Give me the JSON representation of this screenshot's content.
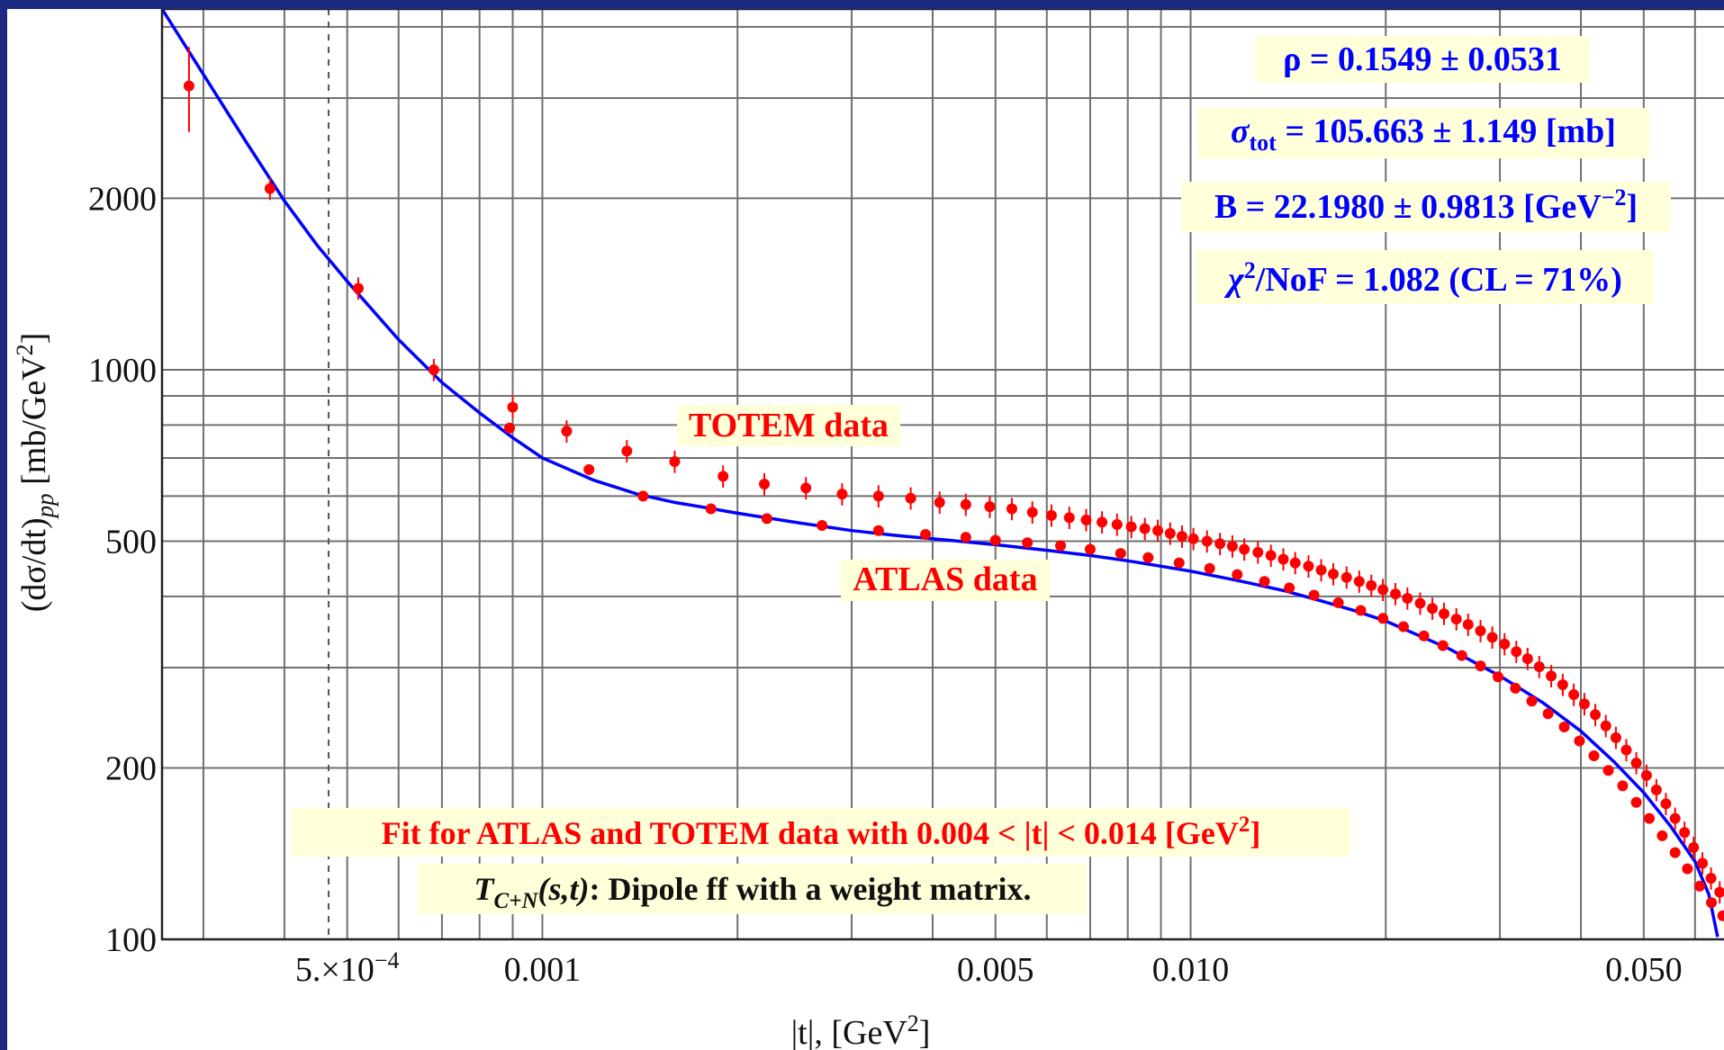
{
  "chart_data": {
    "type": "scatter",
    "xlabel": "|t|, [GeV",
    "xlabel_sup": "2",
    "xlabel_end": "]",
    "ylabel": "(dσ/dt)",
    "ylabel_sub": "pp",
    "ylabel_unit": " [mb/GeV",
    "ylabel_sup": "2",
    "ylabel_end": "]",
    "x_scale": "log",
    "y_scale": "log",
    "xlim": [
      0.000259,
      0.0665
    ],
    "ylim": [
      100,
      4300
    ],
    "grid": true,
    "dashed_vline_x": 0.000468,
    "x_ticks": [
      {
        "value": 0.0005,
        "label": "5.×10",
        "sup": "−4"
      },
      {
        "value": 0.001,
        "label": "0.001"
      },
      {
        "value": 0.005,
        "label": "0.005"
      },
      {
        "value": 0.01,
        "label": "0.010"
      },
      {
        "value": 0.05,
        "label": "0.050"
      }
    ],
    "y_ticks": [
      {
        "value": 100,
        "label": "100"
      },
      {
        "value": 200,
        "label": "200"
      },
      {
        "value": 500,
        "label": "500"
      },
      {
        "value": 1000,
        "label": "1000"
      },
      {
        "value": 2000,
        "label": "2000"
      }
    ],
    "colors": {
      "data": "#ff0000",
      "fit": "#0000ff",
      "grid": "#707070",
      "label_bg": "#ffffd9",
      "frame": "#1b2a80"
    },
    "series": [
      {
        "name": "TOTEM data",
        "kind": "points",
        "x": [
          0.000285,
          0.00038,
          0.00052,
          0.00068,
          0.0009,
          0.00109,
          0.00135,
          0.0016,
          0.0019,
          0.0022,
          0.00255,
          0.0029,
          0.0033,
          0.0037,
          0.0041,
          0.0045,
          0.0049,
          0.0053,
          0.0057,
          0.0061,
          0.0065,
          0.0069,
          0.0073,
          0.0077,
          0.0081,
          0.0085,
          0.0089,
          0.0093,
          0.0097,
          0.0101,
          0.0106,
          0.0111,
          0.0116,
          0.0121,
          0.0127,
          0.0133,
          0.0139,
          0.0145,
          0.0152,
          0.0159,
          0.0166,
          0.0174,
          0.0182,
          0.019,
          0.0198,
          0.0207,
          0.0216,
          0.0226,
          0.0236,
          0.0246,
          0.0257,
          0.0268,
          0.028,
          0.0292,
          0.0305,
          0.0318,
          0.0331,
          0.0345,
          0.036,
          0.0375,
          0.039,
          0.0405,
          0.0421,
          0.0437,
          0.0453,
          0.047,
          0.0487,
          0.0505,
          0.0523,
          0.0541,
          0.0559,
          0.0578,
          0.0597,
          0.0616,
          0.0635,
          0.0655
        ],
        "y": [
          3150,
          2080,
          1390,
          1000,
          860,
          780,
          720,
          690,
          650,
          630,
          620,
          605,
          600,
          595,
          585,
          580,
          575,
          570,
          562,
          555,
          550,
          545,
          540,
          535,
          530,
          526,
          522,
          516,
          510,
          505,
          500,
          495,
          490,
          484,
          478,
          472,
          465,
          458,
          452,
          445,
          438,
          432,
          425,
          418,
          411,
          404,
          397,
          389,
          381,
          373,
          365,
          357,
          348,
          339,
          330,
          320,
          311,
          301,
          290,
          280,
          269,
          259,
          248,
          237,
          226,
          215,
          204,
          194,
          183,
          173,
          163,
          154,
          145,
          136,
          128,
          121
        ]
      },
      {
        "name": "ATLAS data",
        "kind": "points",
        "x": [
          0.00089,
          0.00118,
          0.00143,
          0.00182,
          0.00222,
          0.0027,
          0.0033,
          0.0039,
          0.0045,
          0.005,
          0.0056,
          0.0063,
          0.007,
          0.0078,
          0.0086,
          0.0096,
          0.0107,
          0.0118,
          0.013,
          0.0142,
          0.0155,
          0.0169,
          0.0183,
          0.0198,
          0.0213,
          0.0229,
          0.0245,
          0.0262,
          0.028,
          0.0298,
          0.0317,
          0.0336,
          0.0356,
          0.0377,
          0.0398,
          0.0419,
          0.0441,
          0.0464,
          0.0487,
          0.051,
          0.0534,
          0.0559,
          0.0584,
          0.061,
          0.0636,
          0.0662
        ],
        "y": [
          790,
          668,
          600,
          570,
          548,
          533,
          522,
          514,
          508,
          502,
          497,
          491,
          484,
          476,
          468,
          458,
          448,
          437,
          425,
          414,
          402,
          390,
          378,
          366,
          354,
          341,
          328,
          315,
          302,
          289,
          276,
          262,
          249,
          236,
          223,
          210,
          198,
          186,
          174,
          163,
          152,
          142,
          133,
          124,
          116,
          110
        ]
      },
      {
        "name": "fit",
        "kind": "line",
        "x": [
          0.000259,
          0.0003,
          0.00035,
          0.0004,
          0.00045,
          0.0005,
          0.0006,
          0.0007,
          0.0008,
          0.0009,
          0.001,
          0.0012,
          0.0014,
          0.0016,
          0.0018,
          0.002,
          0.0025,
          0.003,
          0.0035,
          0.004,
          0.005,
          0.006,
          0.007,
          0.008,
          0.009,
          0.01,
          0.012,
          0.014,
          0.016,
          0.018,
          0.02,
          0.025,
          0.03,
          0.035,
          0.04,
          0.045,
          0.05,
          0.055,
          0.06,
          0.063,
          0.065
        ],
        "y": [
          4300,
          3300,
          2500,
          1980,
          1650,
          1430,
          1130,
          950,
          840,
          760,
          700,
          640,
          605,
          585,
          572,
          560,
          538,
          522,
          512,
          505,
          493,
          482,
          472,
          462,
          452,
          443,
          425,
          409,
          392,
          377,
          362,
          324,
          290,
          260,
          232,
          205,
          181,
          158,
          137,
          120,
          101
        ]
      }
    ],
    "annotations": {
      "rho": "ρ = 0.1549 ± 0.0531",
      "sigma_symbol": "σ",
      "sigma_sub": "tot",
      "sigma_rest": " = 105.663 ± 1.149 [mb]",
      "b_text": "B = 22.1980 ± 0.9813 [GeV",
      "b_sup": "−2",
      "b_end": "]",
      "chi_symbol": "χ",
      "chi_sup": "2",
      "chi_rest": "/NoF = 1.082 (CL = 71%)",
      "totem_label": "TOTEM data",
      "atlas_label": "ATLAS data",
      "fit_note": "Fit for ATLAS and TOTEM data with 0.004 < |t| < 0.014 [GeV",
      "fit_note_sup": "2",
      "fit_note_end": "]",
      "model_T": "T",
      "model_sub": "C+N",
      "model_args": "(s,t)",
      "model_rest": ": Dipole ff with a weight matrix."
    }
  }
}
